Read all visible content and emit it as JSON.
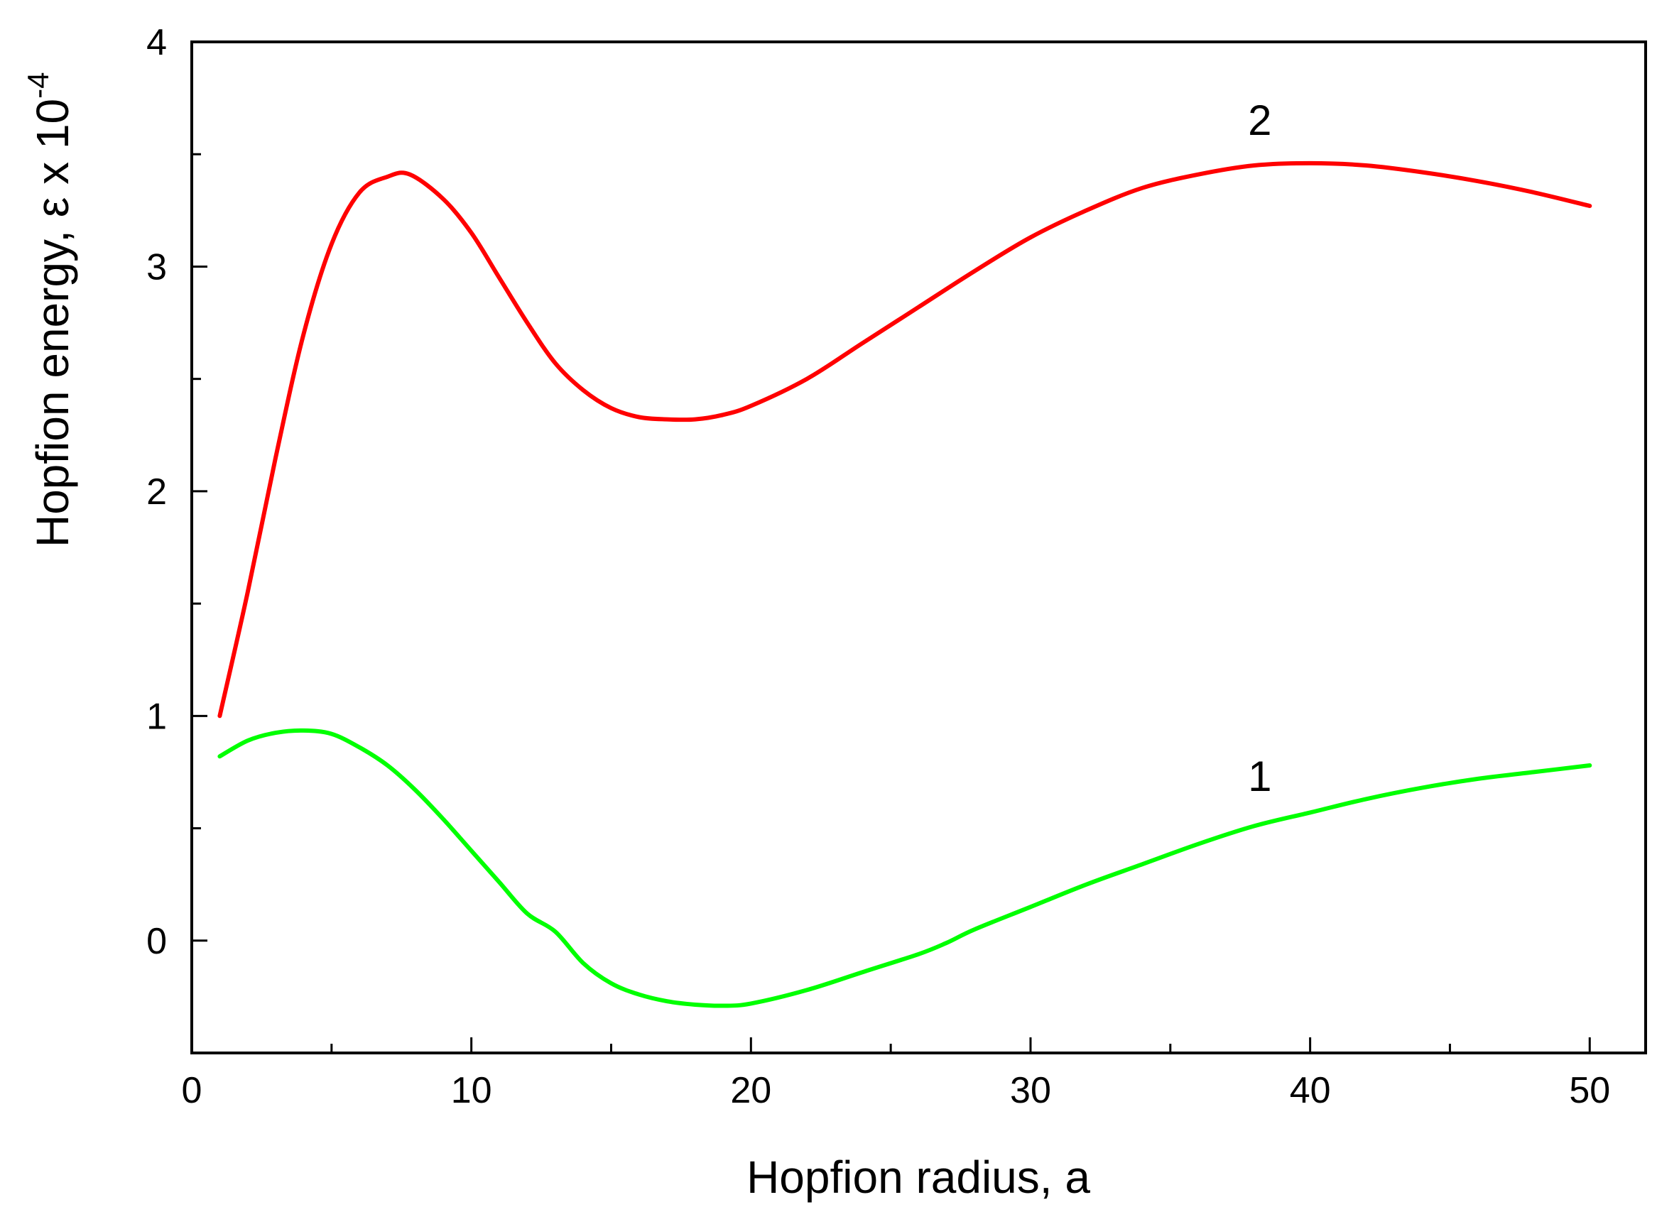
{
  "chart_data": {
    "type": "line",
    "title": "",
    "xlabel": "Hopfion radius, a",
    "ylabel_main": "Hopfion energy, ε x 10",
    "ylabel_sup": "-4",
    "xlim": [
      0,
      52
    ],
    "ylim": [
      -0.5,
      4
    ],
    "x_ticks": [
      0,
      10,
      20,
      30,
      40,
      50
    ],
    "y_ticks": [
      0,
      1,
      2,
      3,
      4
    ],
    "x_minor_ticks": [
      5,
      15,
      25,
      35,
      45
    ],
    "y_minor_ticks": [
      0.5,
      1.5,
      2.5,
      3.5
    ],
    "grid": false,
    "series": [
      {
        "name": "2",
        "color": "#ff0000",
        "x": [
          1,
          2,
          3,
          4,
          5,
          6,
          7,
          7.8,
          9,
          10,
          11,
          12,
          13,
          14,
          15,
          16,
          17,
          18,
          19,
          20,
          22,
          24,
          26,
          28,
          30,
          32,
          34,
          36,
          38,
          40,
          42,
          44,
          46,
          48,
          50
        ],
        "y": [
          1.0,
          1.55,
          2.15,
          2.7,
          3.1,
          3.33,
          3.4,
          3.41,
          3.3,
          3.15,
          2.95,
          2.75,
          2.57,
          2.45,
          2.37,
          2.33,
          2.32,
          2.32,
          2.34,
          2.38,
          2.5,
          2.66,
          2.82,
          2.98,
          3.13,
          3.25,
          3.35,
          3.41,
          3.45,
          3.46,
          3.45,
          3.42,
          3.38,
          3.33,
          3.27
        ]
      },
      {
        "name": "1",
        "color": "#00ff00",
        "x": [
          1,
          2,
          3,
          4,
          5,
          6,
          7,
          8,
          9,
          10,
          11,
          12,
          13,
          14,
          15,
          16,
          17,
          18,
          19,
          20,
          22,
          24,
          26,
          27,
          28,
          30,
          32,
          34,
          36,
          38,
          40,
          42,
          44,
          46,
          48,
          50
        ],
        "y": [
          0.82,
          0.89,
          0.925,
          0.935,
          0.92,
          0.86,
          0.78,
          0.67,
          0.54,
          0.4,
          0.26,
          0.12,
          0.04,
          -0.1,
          -0.19,
          -0.24,
          -0.27,
          -0.285,
          -0.29,
          -0.28,
          -0.22,
          -0.14,
          -0.06,
          -0.01,
          0.05,
          0.15,
          0.25,
          0.34,
          0.43,
          0.51,
          0.57,
          0.63,
          0.68,
          0.72,
          0.75,
          0.78
        ]
      }
    ],
    "annotations": [
      {
        "text": "2",
        "x": 38.2,
        "y": 3.65
      },
      {
        "text": "1",
        "x": 38.2,
        "y": 0.73
      }
    ]
  }
}
